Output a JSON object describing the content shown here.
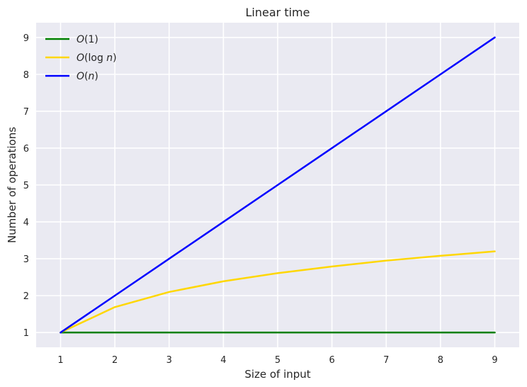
{
  "chart_data": {
    "type": "line",
    "title": "Linear time",
    "xlabel": "Size of input",
    "ylabel": "Number of operations",
    "x": [
      1,
      2,
      3,
      4,
      5,
      6,
      7,
      8,
      9
    ],
    "xlim": [
      0.55,
      9.45
    ],
    "ylim": [
      0.6,
      9.4
    ],
    "xticks": [
      1,
      2,
      3,
      4,
      5,
      6,
      7,
      8,
      9
    ],
    "yticks": [
      1,
      2,
      3,
      4,
      5,
      6,
      7,
      8,
      9
    ],
    "grid": true,
    "legend_position": "top-left",
    "background": "#eaeaf2",
    "series": [
      {
        "name": "O(1)",
        "color": "#008000",
        "values": [
          1,
          1,
          1,
          1,
          1,
          1,
          1,
          1,
          1
        ]
      },
      {
        "name": "O(log n)",
        "color": "#ffd700",
        "values": [
          1.0,
          1.69,
          2.1,
          2.39,
          2.61,
          2.79,
          2.95,
          3.08,
          3.2
        ]
      },
      {
        "name": "O(n)",
        "color": "#0000ff",
        "values": [
          1,
          2,
          3,
          4,
          5,
          6,
          7,
          8,
          9
        ]
      }
    ]
  }
}
